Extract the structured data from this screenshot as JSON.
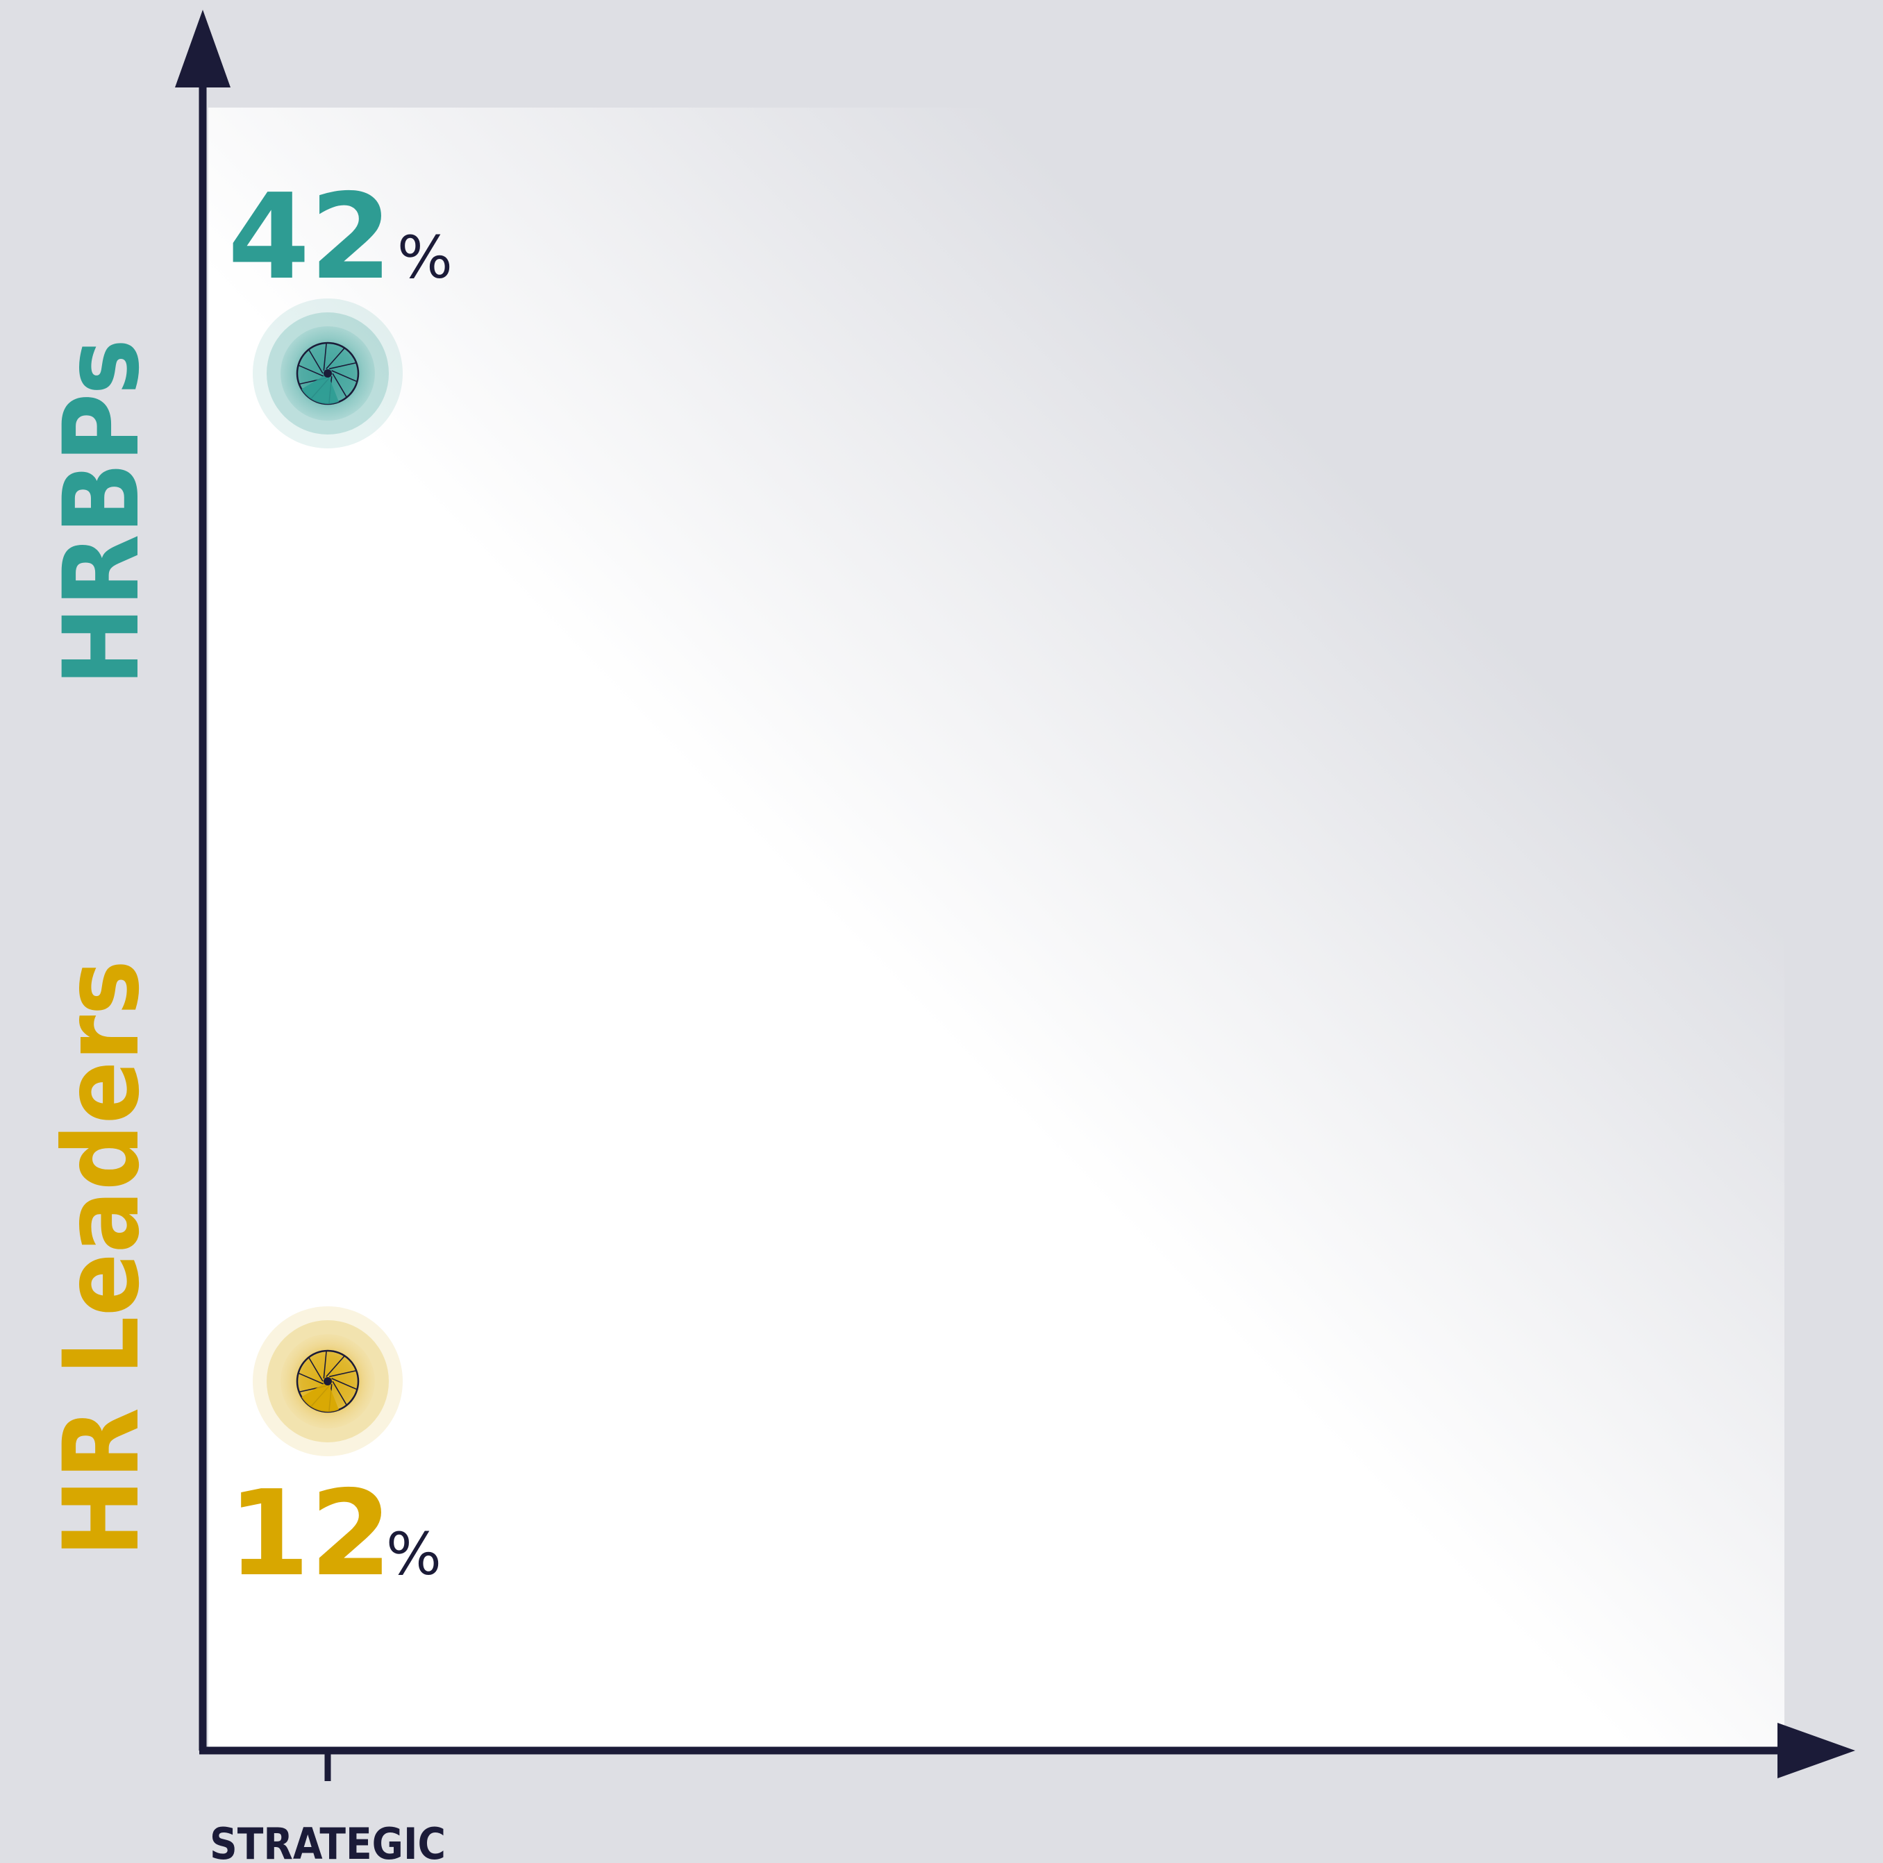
{
  "colors": {
    "background": "#dedfe4",
    "axis": "#1b1b38",
    "teal": "#2e9c93",
    "gold": "#d8a700",
    "panel_light": "#ffffff"
  },
  "chart_data": {
    "type": "scatter",
    "title": "",
    "xlabel": "",
    "ylabel": "",
    "x_tick_labels": [
      "STRATEGIC"
    ],
    "grid": false,
    "series": [
      {
        "name": "HRBPs",
        "color": "#2e9c93",
        "x": "STRATEGIC",
        "value": 42,
        "value_label": "42",
        "unit": "%",
        "label_position": "above"
      },
      {
        "name": "HR Leaders",
        "color": "#d8a700",
        "x": "STRATEGIC",
        "value": 12,
        "value_label": "12",
        "unit": "%",
        "label_position": "below"
      }
    ]
  }
}
